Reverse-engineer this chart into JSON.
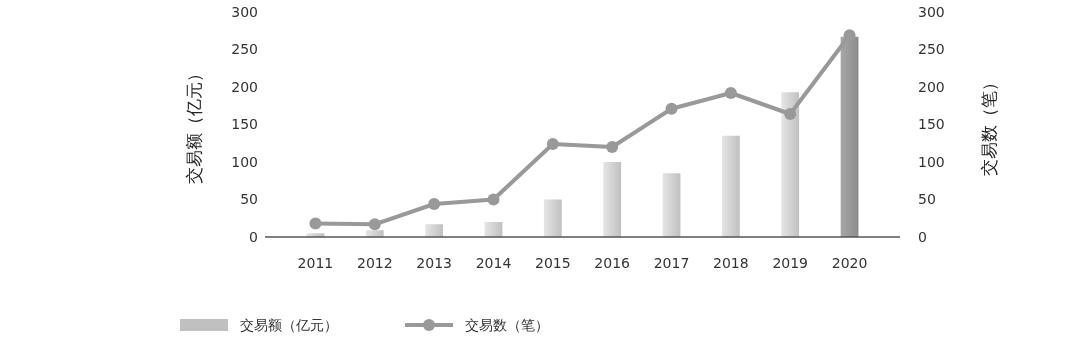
{
  "chart_data": {
    "type": "bar",
    "categories": [
      "2011",
      "2012",
      "2013",
      "2014",
      "2015",
      "2016",
      "2017",
      "2018",
      "2019",
      "2020"
    ],
    "ylabel": "交易额（亿元）",
    "y2label": "交易数（笔）",
    "series": [
      {
        "name": "交易额（亿元）",
        "color": "#c0c0c0",
        "colors": [
          "#c0c0c0",
          "#c0c0c0",
          "#c0c0c0",
          "#c0c0c0",
          "#c0c0c0",
          "#c0c0c0",
          "#c0c0c0",
          "#c0c0c0",
          "#c0c0c0",
          "#8c8c8c"
        ],
        "values": [
          5,
          9,
          17,
          20,
          50,
          100,
          85,
          135,
          193,
          267
        ]
      },
      {
        "name": "交易数（笔）",
        "type": "line",
        "axis": "y2",
        "color": "#999999",
        "values": [
          18,
          17,
          44,
          50,
          124,
          120,
          171,
          192,
          164,
          269
        ]
      }
    ],
    "ylim": [
      0,
      300
    ],
    "yticks": [
      0,
      50,
      100,
      150,
      200,
      250,
      300
    ],
    "y2lim": [
      0,
      300
    ],
    "y2ticks": [
      0,
      50,
      100,
      150,
      200,
      250,
      300
    ],
    "legend": "bottom left",
    "marker": "circle",
    "grid": false
  }
}
